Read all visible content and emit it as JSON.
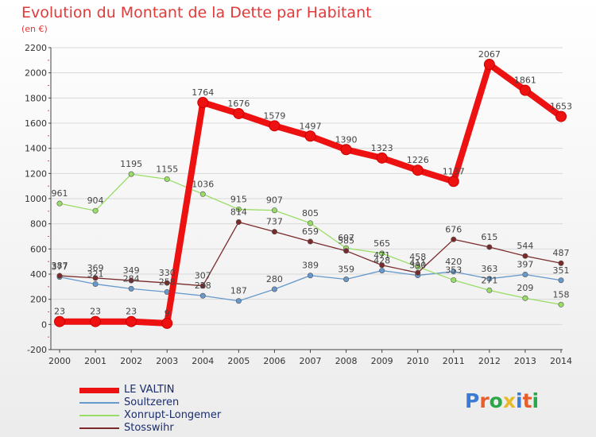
{
  "header": {
    "title": "Evolution du Montant de la Dette par Habitant",
    "subtitle": "(en €)"
  },
  "logo": {
    "text": "Proxiti"
  },
  "chart_data": {
    "type": "line",
    "title": "Evolution du Montant de la Dette par Habitant",
    "subtitle": "(en €)",
    "xlabel": "",
    "ylabel": "",
    "ylim": [
      -200,
      2200
    ],
    "y_ticks": [
      -200,
      0,
      200,
      400,
      600,
      800,
      1000,
      1200,
      1400,
      1600,
      1800,
      2000,
      2200
    ],
    "categories": [
      "2000",
      "2001",
      "2002",
      "2003",
      "2004",
      "2005",
      "2006",
      "2007",
      "2008",
      "2009",
      "2010",
      "2011",
      "2012",
      "2013",
      "2014"
    ],
    "legend_position": "bottom-left",
    "series": [
      {
        "name": "LE VALTIN",
        "color": "#ee1111",
        "values": [
          23,
          23,
          23,
          9,
          1764,
          1676,
          1579,
          1497,
          1390,
          1323,
          1226,
          1137,
          2067,
          1861,
          1653
        ]
      },
      {
        "name": "Soultzeren",
        "color": "#6699cc",
        "values": [
          377,
          321,
          284,
          258,
          228,
          187,
          280,
          389,
          359,
          428,
          390,
          420,
          363,
          397,
          351
        ]
      },
      {
        "name": "Xonrupt-Longemer",
        "color": "#99dd66",
        "values": [
          961,
          904,
          1195,
          1155,
          1036,
          915,
          907,
          805,
          607,
          565,
          458,
          353,
          271,
          209,
          158
        ]
      },
      {
        "name": "Stosswihr",
        "color": "#7a2a2a",
        "values": [
          387,
          369,
          349,
          330,
          307,
          814,
          737,
          659,
          585,
          471,
          411,
          676,
          615,
          544,
          487
        ]
      }
    ]
  }
}
